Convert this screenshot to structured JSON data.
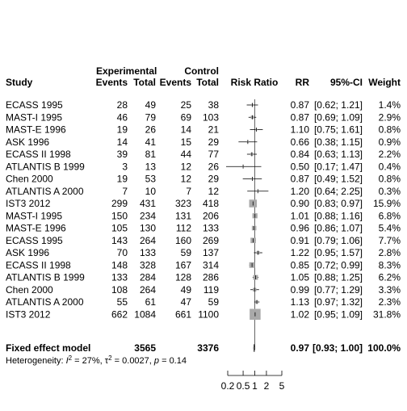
{
  "chart_data": {
    "type": "forest",
    "header": {
      "group_experimental": "Experimental",
      "group_control": "Control",
      "study": "Study",
      "events": "Events",
      "total": "Total",
      "risk_ratio": "Risk Ratio",
      "rr": "RR",
      "ci": "95%-CI",
      "weight": "Weight"
    },
    "studies": [
      {
        "name": "ECASS 1995",
        "e_events": "28",
        "e_total": "49",
        "c_events": "25",
        "c_total": "38",
        "rr": 0.87,
        "lower": 0.62,
        "upper": 1.21,
        "rr_text": "0.87",
        "ci_text": "[0.62; 1.21]",
        "weight": 1.4,
        "weight_text": "1.4%"
      },
      {
        "name": "MAST-I 1995",
        "e_events": "46",
        "e_total": "79",
        "c_events": "69",
        "c_total": "103",
        "rr": 0.87,
        "lower": 0.69,
        "upper": 1.09,
        "rr_text": "0.87",
        "ci_text": "[0.69; 1.09]",
        "weight": 2.9,
        "weight_text": "2.9%"
      },
      {
        "name": "MAST-E 1996",
        "e_events": "19",
        "e_total": "26",
        "c_events": "14",
        "c_total": "21",
        "rr": 1.1,
        "lower": 0.75,
        "upper": 1.61,
        "rr_text": "1.10",
        "ci_text": "[0.75; 1.61]",
        "weight": 0.8,
        "weight_text": "0.8%"
      },
      {
        "name": "ASK 1996",
        "e_events": "14",
        "e_total": "41",
        "c_events": "15",
        "c_total": "29",
        "rr": 0.66,
        "lower": 0.38,
        "upper": 1.15,
        "rr_text": "0.66",
        "ci_text": "[0.38; 1.15]",
        "weight": 0.9,
        "weight_text": "0.9%"
      },
      {
        "name": "ECASS II 1998",
        "e_events": "39",
        "e_total": "81",
        "c_events": "44",
        "c_total": "77",
        "rr": 0.84,
        "lower": 0.63,
        "upper": 1.13,
        "rr_text": "0.84",
        "ci_text": "[0.63; 1.13]",
        "weight": 2.2,
        "weight_text": "2.2%"
      },
      {
        "name": "ATLANTIS B 1999",
        "e_events": "3",
        "e_total": "13",
        "c_events": "12",
        "c_total": "26",
        "rr": 0.5,
        "lower": 0.17,
        "upper": 1.47,
        "rr_text": "0.50",
        "ci_text": "[0.17; 1.47]",
        "weight": 0.4,
        "weight_text": "0.4%"
      },
      {
        "name": "Chen 2000",
        "e_events": "19",
        "e_total": "53",
        "c_events": "12",
        "c_total": "29",
        "rr": 0.87,
        "lower": 0.49,
        "upper": 1.52,
        "rr_text": "0.87",
        "ci_text": "[0.49; 1.52]",
        "weight": 0.8,
        "weight_text": "0.8%"
      },
      {
        "name": "ATLANTIS A 2000",
        "e_events": "7",
        "e_total": "10",
        "c_events": "7",
        "c_total": "12",
        "rr": 1.2,
        "lower": 0.64,
        "upper": 2.25,
        "rr_text": "1.20",
        "ci_text": "[0.64; 2.25]",
        "weight": 0.3,
        "weight_text": "0.3%"
      },
      {
        "name": "IST3 2012",
        "e_events": "299",
        "e_total": "431",
        "c_events": "323",
        "c_total": "418",
        "rr": 0.9,
        "lower": 0.83,
        "upper": 0.97,
        "rr_text": "0.90",
        "ci_text": "[0.83; 0.97]",
        "weight": 15.9,
        "weight_text": "15.9%"
      },
      {
        "name": "MAST-I 1995",
        "e_events": "150",
        "e_total": "234",
        "c_events": "131",
        "c_total": "206",
        "rr": 1.01,
        "lower": 0.88,
        "upper": 1.16,
        "rr_text": "1.01",
        "ci_text": "[0.88; 1.16]",
        "weight": 6.8,
        "weight_text": "6.8%"
      },
      {
        "name": "MAST-E 1996",
        "e_events": "105",
        "e_total": "130",
        "c_events": "112",
        "c_total": "133",
        "rr": 0.96,
        "lower": 0.86,
        "upper": 1.07,
        "rr_text": "0.96",
        "ci_text": "[0.86; 1.07]",
        "weight": 5.4,
        "weight_text": "5.4%"
      },
      {
        "name": "ECASS 1995",
        "e_events": "143",
        "e_total": "264",
        "c_events": "160",
        "c_total": "269",
        "rr": 0.91,
        "lower": 0.79,
        "upper": 1.06,
        "rr_text": "0.91",
        "ci_text": "[0.79; 1.06]",
        "weight": 7.7,
        "weight_text": "7.7%"
      },
      {
        "name": "ASK 1996",
        "e_events": "70",
        "e_total": "133",
        "c_events": "59",
        "c_total": "137",
        "rr": 1.22,
        "lower": 0.95,
        "upper": 1.57,
        "rr_text": "1.22",
        "ci_text": "[0.95; 1.57]",
        "weight": 2.8,
        "weight_text": "2.8%"
      },
      {
        "name": "ECASS II 1998",
        "e_events": "148",
        "e_total": "328",
        "c_events": "167",
        "c_total": "314",
        "rr": 0.85,
        "lower": 0.72,
        "upper": 0.99,
        "rr_text": "0.85",
        "ci_text": "[0.72; 0.99]",
        "weight": 8.3,
        "weight_text": "8.3%"
      },
      {
        "name": "ATLANTIS B 1999",
        "e_events": "133",
        "e_total": "284",
        "c_events": "128",
        "c_total": "286",
        "rr": 1.05,
        "lower": 0.88,
        "upper": 1.25,
        "rr_text": "1.05",
        "ci_text": "[0.88; 1.25]",
        "weight": 6.2,
        "weight_text": "6.2%"
      },
      {
        "name": "Chen 2000",
        "e_events": "108",
        "e_total": "264",
        "c_events": "49",
        "c_total": "119",
        "rr": 0.99,
        "lower": 0.77,
        "upper": 1.29,
        "rr_text": "0.99",
        "ci_text": "[0.77; 1.29]",
        "weight": 3.3,
        "weight_text": "3.3%"
      },
      {
        "name": "ATLANTIS A 2000",
        "e_events": "55",
        "e_total": "61",
        "c_events": "47",
        "c_total": "59",
        "rr": 1.13,
        "lower": 0.97,
        "upper": 1.32,
        "rr_text": "1.13",
        "ci_text": "[0.97; 1.32]",
        "weight": 2.3,
        "weight_text": "2.3%"
      },
      {
        "name": "IST3 2012",
        "e_events": "662",
        "e_total": "1084",
        "c_events": "661",
        "c_total": "1100",
        "rr": 1.02,
        "lower": 0.95,
        "upper": 1.09,
        "rr_text": "1.02",
        "ci_text": "[0.95; 1.09]",
        "weight": 31.8,
        "weight_text": "31.8%"
      }
    ],
    "summary": {
      "label": "Fixed effect model",
      "e_total": "3565",
      "c_total": "3376",
      "rr": 0.97,
      "lower": 0.93,
      "upper": 1.0,
      "rr_text": "0.97",
      "ci_text": "[0.93; 1.00]",
      "weight_text": "100.0%"
    },
    "heterogeneity": {
      "prefix": "Heterogeneity: ",
      "i2_symbol": "I",
      "i2_value": " = 27%, ",
      "tau_symbol": "τ",
      "tau_value": " = 0.0027, ",
      "p_symbol": "p",
      "p_value": " = 0.14"
    },
    "x_axis": {
      "scale": "log",
      "ticks": [
        0.2,
        0.5,
        1,
        2,
        5
      ],
      "tick_labels": [
        "0.2",
        "0.5",
        "1",
        "2",
        "5"
      ],
      "reference": 1
    },
    "colors": {
      "square": "#a9a9a9",
      "line": "#000000",
      "diamond": "#a9a9a9"
    }
  }
}
